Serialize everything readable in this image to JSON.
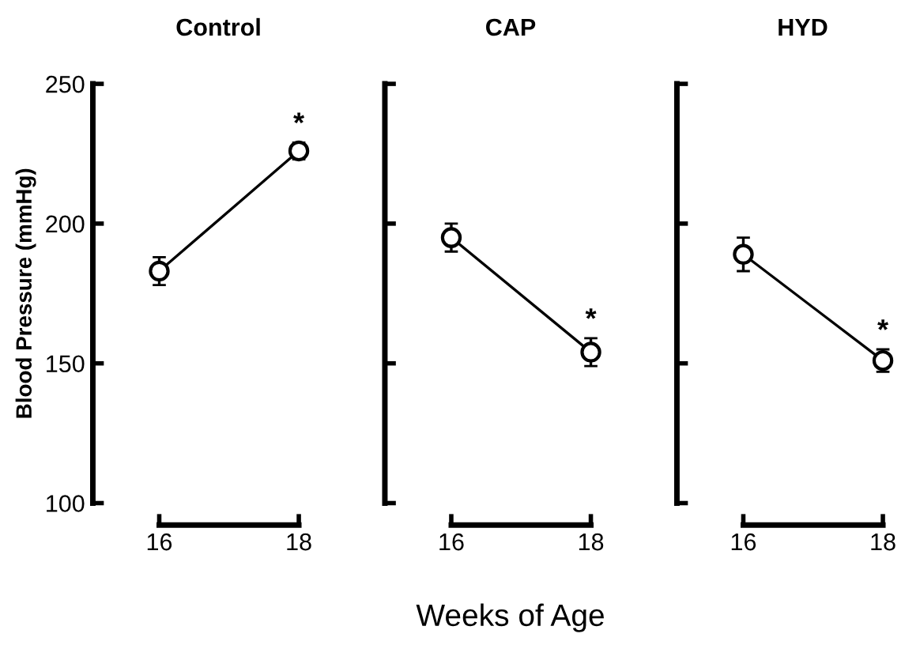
{
  "chart_data": [
    {
      "type": "line",
      "title": "Control",
      "ylabel": "Blood Pressure (mmHg)",
      "categories": [
        "16",
        "18"
      ],
      "series": [
        {
          "color": "#000000",
          "values": [
            183,
            226
          ],
          "errors": [
            5,
            3
          ]
        }
      ],
      "ylim": [
        100,
        250
      ],
      "yticks": [
        100,
        150,
        200,
        250
      ],
      "marker": "circle",
      "line_style": "solid",
      "annotations": [
        "*"
      ]
    },
    {
      "type": "line",
      "title": "CAP",
      "xlabel": "Weeks of Age",
      "categories": [
        "16",
        "18"
      ],
      "series": [
        {
          "color": "#000000",
          "values": [
            195,
            154
          ],
          "errors": [
            5,
            5
          ]
        }
      ],
      "ylim": [
        100,
        250
      ],
      "yticks": [
        100,
        150,
        200,
        250
      ],
      "tick_labels": "x",
      "marker": "circle",
      "line_style": "solid",
      "annotations": [
        "*"
      ]
    },
    {
      "type": "line",
      "title": "HYD",
      "categories": [
        "16",
        "18"
      ],
      "series": [
        {
          "color": "#000000",
          "values": [
            189,
            151
          ],
          "errors": [
            6,
            4
          ]
        }
      ],
      "ylim": [
        100,
        250
      ],
      "yticks": [
        100,
        150,
        200,
        250
      ],
      "tick_labels": "x",
      "marker": "circle",
      "line_style": "solid",
      "annotations": [
        "*"
      ]
    }
  ]
}
